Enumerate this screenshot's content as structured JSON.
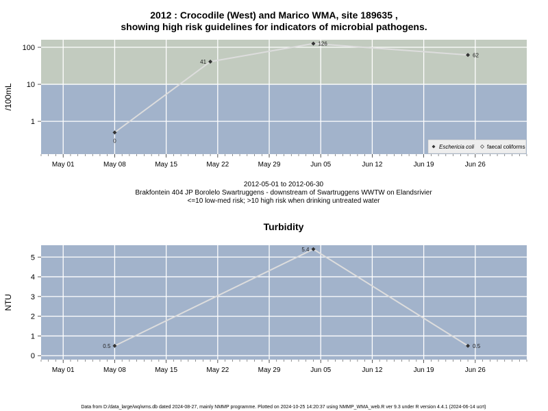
{
  "page": {
    "title_line1": "2012 : Crocodile (West) and Marico WMA, site 189635 ,",
    "title_line2": "showing high risk guidelines for indicators of microbial pathogens.",
    "date_range": "2012-05-01 to 2012-06-30",
    "site_desc": "Brakfontein 404 JP Borolelo Swartruggens - downstream of Swartruggens WWTW on Elandsrivier",
    "risk_note": "<=10 low-med risk; >10 high risk when drinking untreated water",
    "turbidity_title": "Turbidity",
    "footer": "Data from D:/data_large/wq/wms.db dated 2024-08-27, mainly NMMP programme. Plotted on 2024-10-25 14:20:37 using NMMP_WMA_web.R ver 9.3 under R version 4.4.1 (2024-06-14 ucrt)"
  },
  "colors": {
    "high_risk_band": "#c2cbbf",
    "low_risk_band": "#a2b3cb",
    "grid": "#ffffff",
    "line": "#dddddd",
    "marker": "#333333"
  },
  "chart_data": [
    {
      "type": "line",
      "ylabel": "/100mL",
      "yscale": "log",
      "ylim": [
        0.13,
        160
      ],
      "yticks": [
        1,
        10,
        100
      ],
      "ytick_labels": [
        "1",
        "10",
        "100"
      ],
      "xlim": [
        "2012-04-28",
        "2012-07-03"
      ],
      "xticks": [
        "2012-05-01",
        "2012-05-08",
        "2012-05-15",
        "2012-05-22",
        "2012-05-29",
        "2012-06-05",
        "2012-06-12",
        "2012-06-19",
        "2012-06-26"
      ],
      "xtick_labels": [
        "May 01",
        "May 08",
        "May 15",
        "May 22",
        "May 29",
        "Jun 05",
        "Jun 12",
        "Jun 19",
        "Jun 26"
      ],
      "bands": [
        {
          "from": 10,
          "to": 160,
          "color": "#c2cbbf"
        },
        {
          "from": 0.13,
          "to": 10,
          "color": "#a2b3cb"
        }
      ],
      "grid": true,
      "legend_position": "bottom-right",
      "legend": [
        "Eschericia coli",
        "faecal coliforms"
      ],
      "series": [
        {
          "name": "Eschericia coli",
          "x": [
            "2012-05-08",
            "2012-05-21",
            "2012-06-04",
            "2012-06-25"
          ],
          "y": [
            0.5,
            41,
            126,
            62
          ],
          "labels": [
            "0",
            "41",
            "126",
            "62"
          ],
          "label_pos": [
            "below",
            "left",
            "right",
            "right"
          ]
        }
      ]
    },
    {
      "type": "line",
      "ylabel": "NTU",
      "ylim": [
        -0.2,
        5.6
      ],
      "yticks": [
        0,
        1,
        2,
        3,
        4,
        5
      ],
      "ytick_labels": [
        "0",
        "1",
        "2",
        "3",
        "4",
        "5"
      ],
      "xlim": [
        "2012-04-28",
        "2012-07-03"
      ],
      "xticks": [
        "2012-05-01",
        "2012-05-08",
        "2012-05-15",
        "2012-05-22",
        "2012-05-29",
        "2012-06-05",
        "2012-06-12",
        "2012-06-19",
        "2012-06-26"
      ],
      "xtick_labels": [
        "May 01",
        "May 08",
        "May 15",
        "May 22",
        "May 29",
        "Jun 05",
        "Jun 12",
        "Jun 19",
        "Jun 26"
      ],
      "grid": true,
      "series": [
        {
          "x": [
            "2012-05-08",
            "2012-06-04",
            "2012-06-25"
          ],
          "y": [
            0.5,
            5.4,
            0.5
          ],
          "labels": [
            "0.5",
            "5.4",
            "0.5"
          ],
          "label_pos": [
            "left",
            "left",
            "right"
          ]
        }
      ]
    }
  ]
}
